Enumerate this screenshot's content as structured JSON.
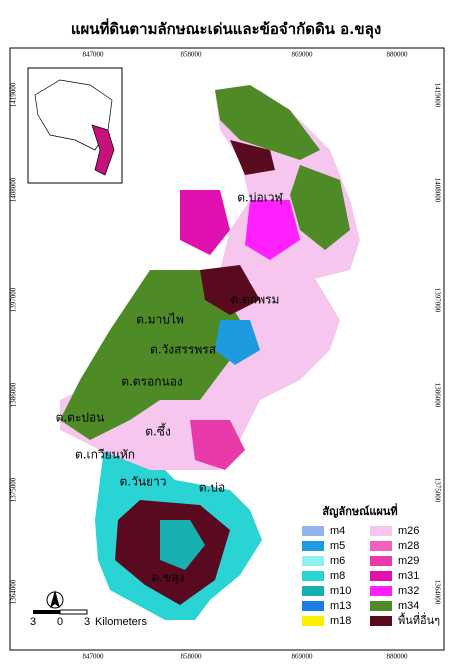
{
  "header": {
    "title": "แผนที่ดินตามลักษณะเด่นและข้อจำกัดดิน อ.ขลุง"
  },
  "grid": {
    "x_labels": [
      847000,
      858000,
      869000,
      880000
    ],
    "y_labels": [
      1419000,
      1408000,
      1397000,
      1386000,
      1375000,
      1364000
    ]
  },
  "places": [
    {
      "label": "ต.บ่อเวฬุ"
    },
    {
      "label": "ต.ตกพรม"
    },
    {
      "label": "ต.มาบไพ"
    },
    {
      "label": "ต.วังสรรพรส"
    },
    {
      "label": "ต.ตรอกนอง"
    },
    {
      "label": "ต.ตะปอน"
    },
    {
      "label": "ต.ซึ้ง"
    },
    {
      "label": "ต.เกวียนหัก"
    },
    {
      "label": "ต.วันยาว"
    },
    {
      "label": "ต.บ่อ"
    },
    {
      "label": "ต.ขลุง"
    }
  ],
  "legend": {
    "title": "สัญลักษณ์แผนที่",
    "items": [
      {
        "label": "m4",
        "color": "#8fb4f0"
      },
      {
        "label": "m5",
        "color": "#1e9be0"
      },
      {
        "label": "m6",
        "color": "#8ff0f0"
      },
      {
        "label": "m8",
        "color": "#2ad4d4"
      },
      {
        "label": "m10",
        "color": "#16b0b0"
      },
      {
        "label": "m13",
        "color": "#1a7ee8"
      },
      {
        "label": "m18",
        "color": "#ffee00"
      },
      {
        "label": "m26",
        "color": "#f7c6ee"
      },
      {
        "label": "m28",
        "color": "#f060c0"
      },
      {
        "label": "m29",
        "color": "#e83aa8"
      },
      {
        "label": "m31",
        "color": "#e010b0"
      },
      {
        "label": "m32",
        "color": "#ff20ff"
      },
      {
        "label": "m34",
        "color": "#4e8a26"
      },
      {
        "label": "พื้นที่อื่นๆ",
        "color": "#5a0a1e"
      }
    ]
  },
  "scale": {
    "labels": [
      "3",
      "0",
      "3",
      "Kilometers"
    ]
  }
}
